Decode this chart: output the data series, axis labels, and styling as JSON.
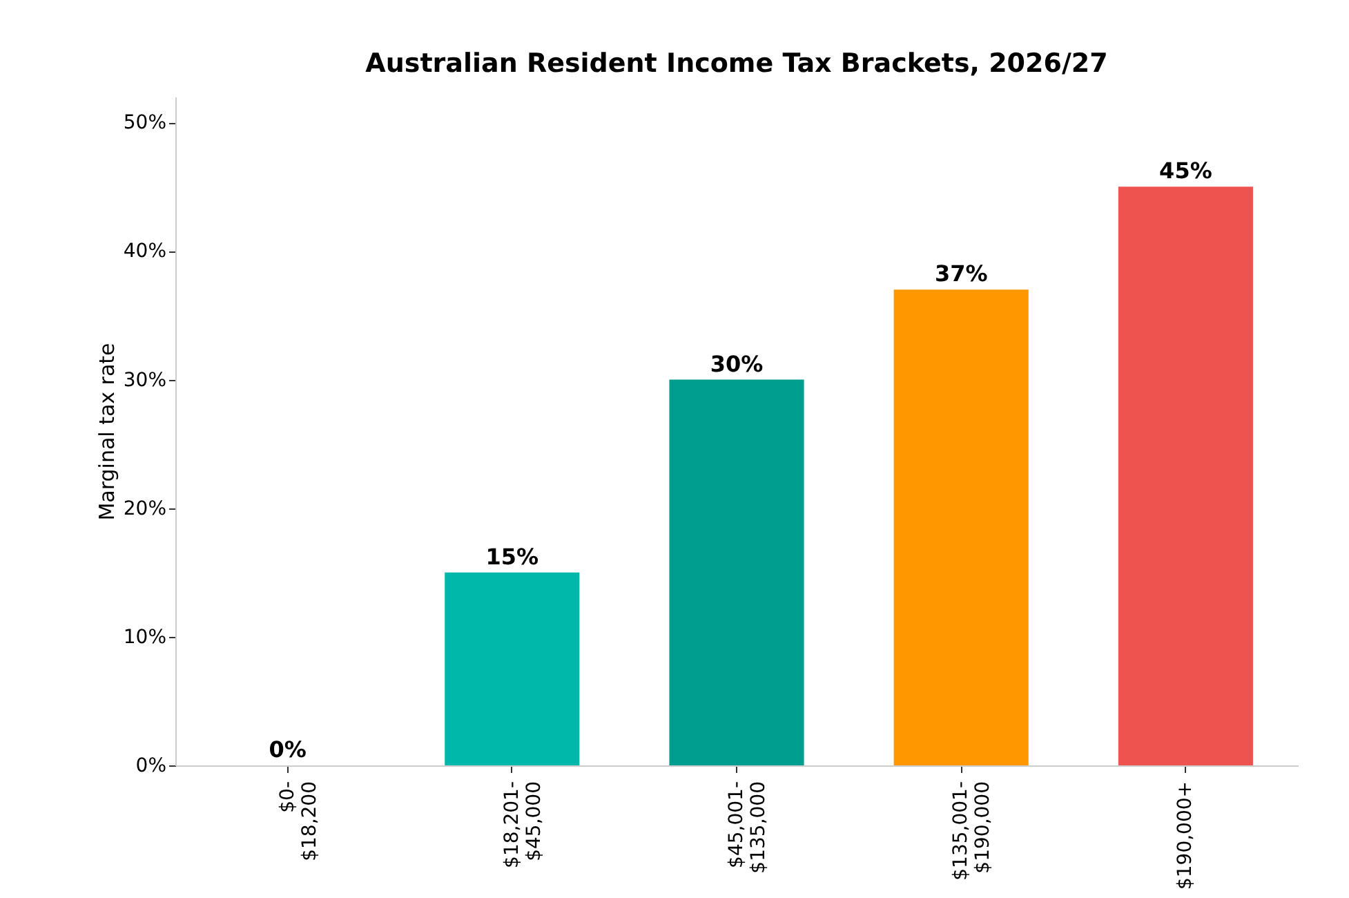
{
  "chart_data": {
    "type": "bar",
    "title": "Australian Resident Income Tax Brackets, 2026/27",
    "ylabel": "Marginal tax rate",
    "categories": [
      "$0-\n$18,200",
      "$18,201-\n$45,000",
      "$45,001-\n$135,000",
      "$135,001-\n$190,000",
      "$190,000+"
    ],
    "values": [
      0,
      15,
      30,
      37,
      45
    ],
    "colors": [
      "#00b8a9",
      "#00b8a9",
      "#009e8f",
      "#ff9800",
      "#ef5350"
    ],
    "value_labels": [
      "0%",
      "15%",
      "30%",
      "37%",
      "45%"
    ],
    "ylim": [
      0,
      52
    ],
    "yticks": [
      {
        "value": 0,
        "label": "0%"
      },
      {
        "value": 10,
        "label": "10%"
      },
      {
        "value": 20,
        "label": "20%"
      },
      {
        "value": 30,
        "label": "30%"
      },
      {
        "value": 40,
        "label": "40%"
      },
      {
        "value": 50,
        "label": "50%"
      }
    ],
    "grid": false,
    "legend": false
  }
}
